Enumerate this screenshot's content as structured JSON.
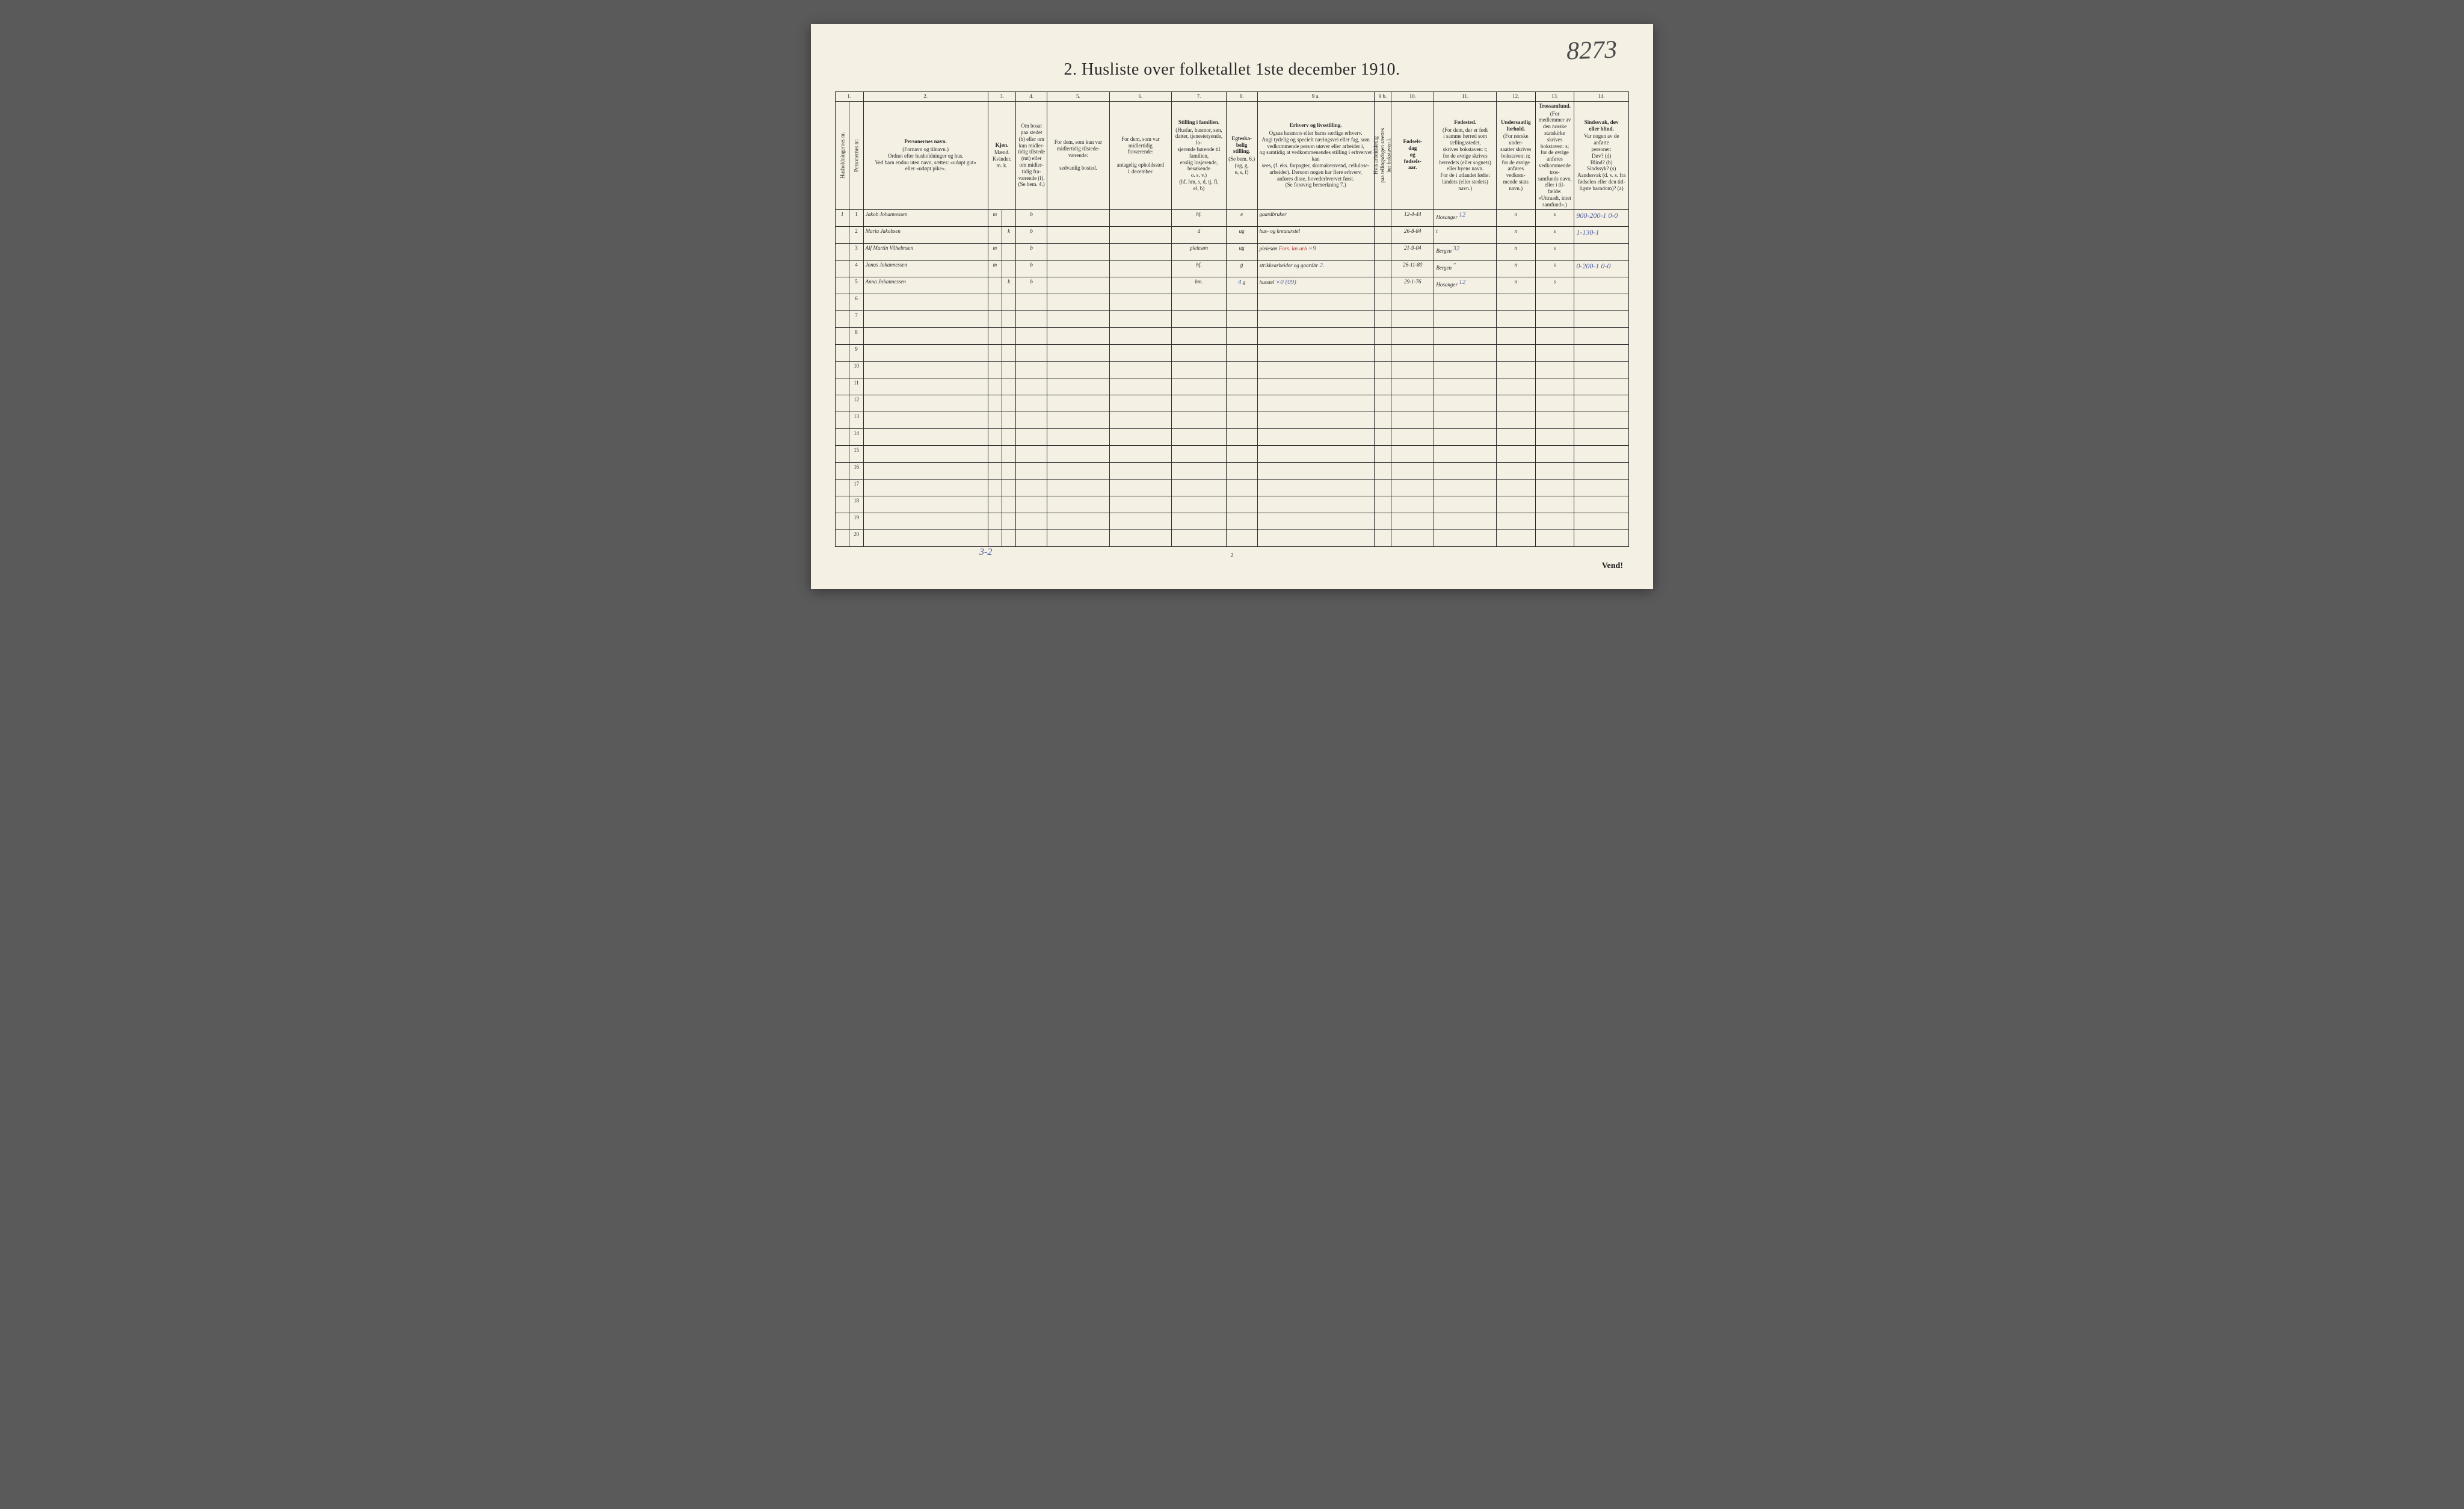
{
  "page": {
    "title": "2.  Husliste over folketallet 1ste december 1910.",
    "top_right_number": "8273",
    "footer_page": "2",
    "vend": "Vend!",
    "bottom_note": "3-2"
  },
  "columns": {
    "nums": [
      "1.",
      "2.",
      "3.",
      "4.",
      "5.",
      "6.",
      "7.",
      "8.",
      "9 a.",
      "9 b.",
      "10.",
      "11.",
      "12.",
      "13.",
      "14."
    ],
    "h1": "Husholdningernes nr.",
    "h1b": "Personernes nr.",
    "h2": {
      "title": "Personernes navn.",
      "sub": "(Fornavn og tilnavn.)\nOrdnet efter husholdninger og hus.\nVed barn endnu uten navn, sættes: «udøpt gut»\neller «udøpt pike»."
    },
    "h3": {
      "title": "Kjøn.",
      "sub": "Mænd.  Kvinder.\nm.  k."
    },
    "h4": {
      "title": "",
      "sub": "Om bosat\npaa stedet\n(b) eller om\nkun midler-\ntidig tilstede\n(mt) eller\nom midler-\ntidig fra-\nværende (f).\n(Se bem. 4.)"
    },
    "h5": {
      "title": "",
      "sub": "For dem, som kun var\nmidlertidig tilstede-\nværende:\n\nsedvanlig bosted."
    },
    "h6": {
      "title": "",
      "sub": "For dem, som var\nmidlertidig\nfraværende:\n\nantagelig opholdssted\n1 december."
    },
    "h7": {
      "title": "Stilling i familien.",
      "sub": "(Husfar, husmor, søn,\ndatter, tjenestetyende, lo-\nsjerende hørende til familien,\nenslig losjerende, besøkende\no. s. v.)\n(hf, hm, s, d, tj, fl,\nel, b)"
    },
    "h8": {
      "title": "Egteska-\nbelig\nstilling.",
      "sub": "(Se bem. 6.)\n(ug, g,\ne, s, f)"
    },
    "h9a": {
      "title": "Erhverv og livsstilling.",
      "sub": "Ogsaa husmors eller barns særlige erhverv.\nAngi tydelig og specielt næringsvei eller fag, som\nvedkommende person utøver eller arbeider i,\nog samtidig at vedkommenendes stilling i erhvervet kan\nsees, (f. eks. forpagter, skomakersvend, cellulose-\narbeider). Dersom nogen har flere erhverv,\nanføres disse, hovederhvervet først.\n(Se forøvrig bemerkning 7.)"
    },
    "h9b": {
      "title": "",
      "sub": "Hvis arbeidsledig\npaa tellingsdagen sæettes\nher bokstaven I."
    },
    "h10": {
      "title": "Fødsels-\ndag\nog\nfødsels-\naar.",
      "sub": ""
    },
    "h11": {
      "title": "Fødested.",
      "sub": "(For dem, der er født\ni samme herred som\ntællingsstedet,\nskrives bokstaven: t;\nfor de øvrige skrives\nherredets (eller sognets)\neller byens navn.\nFor de i utlandet fødte:\nlandets (eller stedets)\nnavn.)"
    },
    "h12": {
      "title": "Undersaatlig\nforhold.",
      "sub": "(For norske under-\nsaatter skrives\nbokstaven: n;\nfor de øvrige\nanføres vedkom-\nmende stats navn.)"
    },
    "h13": {
      "title": "Trossamfund.",
      "sub": "(For medlemmer av\nden norske statskirke\nskrives bokstaven: s;\nfor de øvrige anføres\nvedkommende tros-\nsamfunds navn, eller i til-\nfælde: «Uttraadt, intet\nsamfund».)"
    },
    "h14": {
      "title": "Sindssvak, døv\neller blind.",
      "sub": "Var nogen av de anførte\npersoner:\nDøv?      (d)\nBlind?    (b)\nSindssyk? (s)\nAandssvak (d. v. s. fra\nfødselen eller den tid-\nligste barndom)? (a)"
    }
  },
  "rows": [
    {
      "hh": "1",
      "pn": "1",
      "name": "Jakob Johannessen",
      "sex": "m",
      "res": "b",
      "c5": "",
      "c6": "",
      "fam": "hf.",
      "mar": "e",
      "occ": "gaardbruker",
      "c9b": "",
      "dob": "12-4-44",
      "birth": "Hosanger",
      "birth_sup": "12",
      "nat": "n",
      "rel": "s",
      "c14": "",
      "margin": "900-200-1  0-0"
    },
    {
      "hh": "",
      "pn": "2",
      "name": "Maria Jakobsen",
      "sex": "k",
      "res": "b",
      "c5": "",
      "c6": "",
      "fam": "d",
      "mar": "ug",
      "occ": "hus- og kreaturstel",
      "c9b": "",
      "dob": "26-8-84",
      "birth": "t",
      "birth_sup": "",
      "nat": "n",
      "rel": "s",
      "c14": "",
      "margin": "1-130-1"
    },
    {
      "hh": "",
      "pn": "3",
      "name": "Alf Martin Vilhelmsen",
      "sex": "m",
      "res": "b",
      "c5": "",
      "c6": "",
      "fam": "pleiesøn",
      "mar": "ug",
      "occ": "pleiesøn",
      "occ_red": "Fors. løs arb",
      "occ_blue": "×9",
      "c9b": "",
      "dob": "21-9-04",
      "birth": "Bergen",
      "birth_sup": "32",
      "nat": "n",
      "rel": "s",
      "c14": "",
      "margin": ""
    },
    {
      "hh": "",
      "pn": "4",
      "name": "Jonas Johannessen",
      "sex": "m",
      "res": "b",
      "c5": "",
      "c6": "",
      "fam": "hf.",
      "mar": "g",
      "occ": "strikkearbeider og gaardbr",
      "occ_blue": "2.",
      "c9b": "",
      "dob": "26-11-80",
      "birth": "Bergen",
      "birth_sup": "\"",
      "nat": "n",
      "rel": "s",
      "c14": "",
      "margin": "0-200-1  0-0"
    },
    {
      "hh": "",
      "pn": "5",
      "name": "Anna Johannessen",
      "sex": "k",
      "res": "b",
      "c5": "",
      "c6": "",
      "fam": "hm.",
      "mar": "g",
      "mar_blue": "4",
      "occ": "husstel",
      "occ_blue": "×0 (09)",
      "c9b": "",
      "dob": "29-1-76",
      "birth": "Hosanger",
      "birth_sup": "12",
      "nat": "n",
      "rel": "s",
      "c14": "",
      "margin": ""
    }
  ],
  "empty_rows": [
    6,
    7,
    8,
    9,
    10,
    11,
    12,
    13,
    14,
    15,
    16,
    17,
    18,
    19,
    20
  ],
  "colors": {
    "paper": "#f4f0e4",
    "ink": "#2a2a2a",
    "hand": "#3a3a3a",
    "red": "#c03030",
    "blue": "#5060a0",
    "bg": "#5a5a5a"
  },
  "col_widths_pct": [
    2,
    2,
    16,
    2,
    2,
    4,
    8,
    8,
    8,
    4,
    14,
    2,
    6,
    8,
    5,
    5,
    8
  ]
}
